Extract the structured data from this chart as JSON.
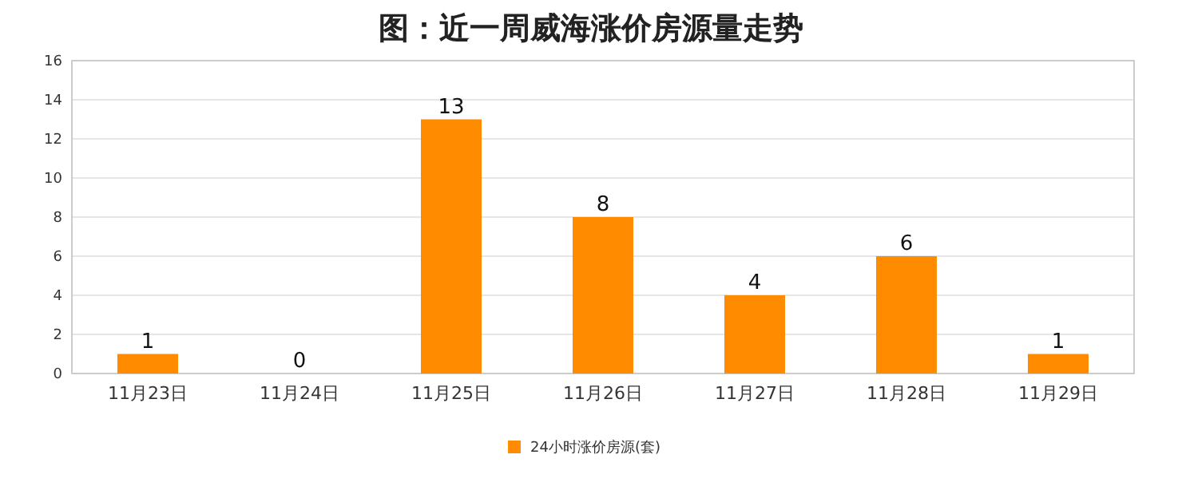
{
  "chart_data": {
    "type": "bar",
    "title": "图：近一周威海涨价房源量走势",
    "categories": [
      "11月23日",
      "11月24日",
      "11月25日",
      "11月26日",
      "11月27日",
      "11月28日",
      "11月29日"
    ],
    "series": [
      {
        "name": "24小时涨价房源(套)",
        "color": "#ff8c00",
        "values": [
          1,
          0,
          13,
          8,
          4,
          6,
          1
        ]
      }
    ],
    "ylim": [
      0,
      16
    ],
    "yticks": [
      0,
      2,
      4,
      6,
      8,
      10,
      12,
      14,
      16
    ],
    "grid": "y",
    "legend": "bottom",
    "data_labels": true
  }
}
